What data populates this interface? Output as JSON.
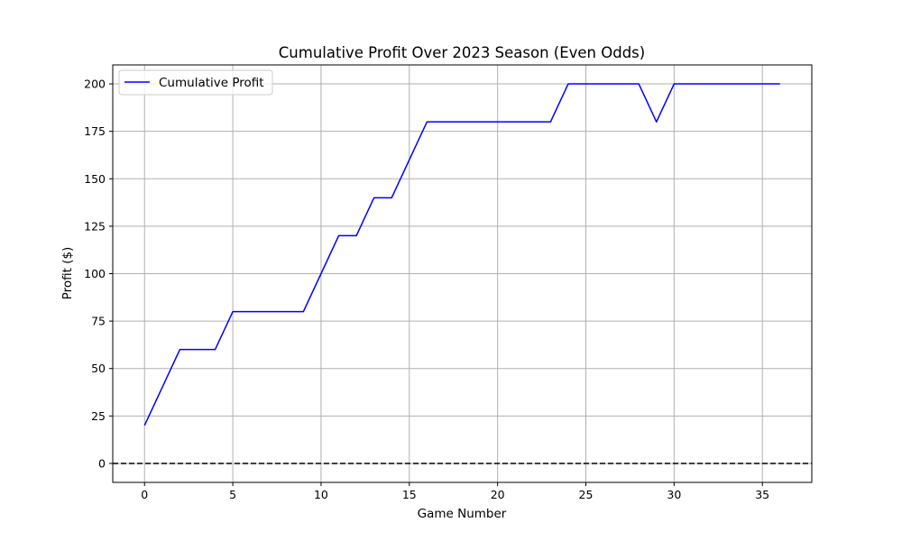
{
  "chart_data": {
    "type": "line",
    "title": "Cumulative Profit Over 2023 Season (Even Odds)",
    "xlabel": "Game Number",
    "ylabel": "Profit ($)",
    "xlim": [
      -1.8,
      37.8
    ],
    "ylim": [
      -10,
      210
    ],
    "xticks": [
      0,
      5,
      10,
      15,
      20,
      25,
      30,
      35
    ],
    "yticks": [
      0,
      25,
      50,
      75,
      100,
      125,
      150,
      175,
      200
    ],
    "grid": true,
    "legend_position": "upper-left",
    "baseline": {
      "y": 0,
      "style": "dashed",
      "color": "#000000"
    },
    "series": [
      {
        "name": "Cumulative Profit",
        "color": "#0000ff",
        "x": [
          0,
          1,
          2,
          3,
          4,
          5,
          6,
          7,
          8,
          9,
          10,
          11,
          12,
          13,
          14,
          15,
          16,
          17,
          18,
          19,
          20,
          21,
          22,
          23,
          24,
          25,
          26,
          27,
          28,
          29,
          30,
          31,
          32,
          33,
          34,
          35,
          36
        ],
        "y": [
          20,
          40,
          60,
          60,
          60,
          80,
          80,
          80,
          80,
          80,
          100,
          120,
          120,
          140,
          140,
          160,
          180,
          180,
          180,
          180,
          180,
          180,
          180,
          180,
          200,
          200,
          200,
          200,
          200,
          180,
          200,
          200,
          200,
          200,
          200,
          200,
          200
        ]
      }
    ]
  }
}
